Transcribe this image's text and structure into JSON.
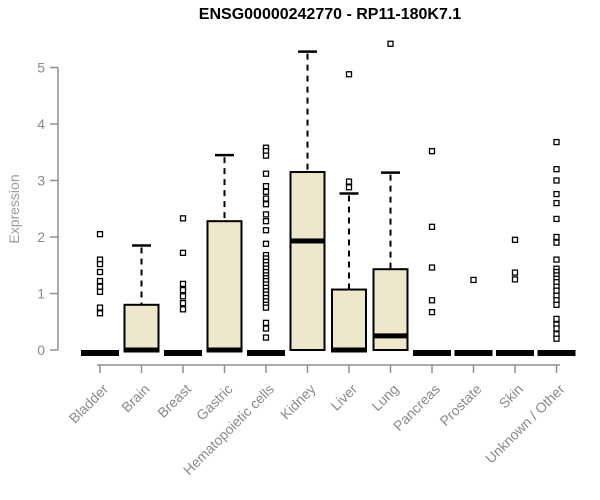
{
  "title": "ENSG00000242770 - RP11-180K7.1",
  "y_axis_label": "Expression",
  "colors": {
    "axis": "#8f8f8f",
    "tick_text": "#8a8a8a",
    "axis_label_text": "#9b9b9b",
    "box_fill": "#EDE8CC",
    "box_border": "#000000",
    "background": "#ffffff"
  },
  "chart_data": {
    "type": "boxplot",
    "title": "ENSG00000242770 - RP11-180K7.1",
    "xlabel": "",
    "ylabel": "Expression",
    "ylim": [
      0,
      5.5
    ],
    "yticks": [
      0,
      1,
      2,
      3,
      4,
      5
    ],
    "grid": false,
    "categories": [
      "Bladder",
      "Brain",
      "Breast",
      "Gastric",
      "Hematopoietic cells",
      "Kidney",
      "Liver",
      "Lung",
      "Pancreas",
      "Prostate",
      "Skin",
      "Unknown / Other"
    ],
    "box_fill": "#EDE8CC",
    "box_border": "#000000",
    "series": [
      {
        "category": "Bladder",
        "q1": 0,
        "median": 0,
        "q3": 0,
        "whisker_low": 0,
        "whisker_high": 0,
        "outliers": [
          2.05,
          1.6,
          1.52,
          1.38,
          1.22,
          1.12,
          1.03,
          0.75,
          0.65
        ]
      },
      {
        "category": "Brain",
        "q1": 0,
        "median": 0,
        "q3": 0.8,
        "whisker_low": 0,
        "whisker_high": 1.85,
        "outliers": []
      },
      {
        "category": "Breast",
        "q1": 0,
        "median": 0,
        "q3": 0,
        "whisker_low": 0,
        "whisker_high": 0,
        "outliers": [
          2.33,
          1.72,
          1.17,
          1.06,
          0.95,
          0.83,
          0.72
        ]
      },
      {
        "category": "Gastric",
        "q1": 0,
        "median": 0,
        "q3": 2.28,
        "whisker_low": 0,
        "whisker_high": 3.45,
        "outliers": []
      },
      {
        "category": "Hematopoietic cells",
        "q1": 0,
        "median": 0,
        "q3": 0,
        "whisker_low": 0,
        "whisker_high": 0,
        "outliers": [
          3.58,
          3.52,
          3.44,
          3.12,
          2.9,
          2.8,
          2.68,
          2.58,
          2.4,
          2.28,
          2.12,
          1.88,
          1.68,
          1.62,
          1.56,
          1.5,
          1.44,
          1.38,
          1.32,
          1.27,
          1.22,
          1.16,
          1.1,
          1.04,
          0.98,
          0.92,
          0.86,
          0.8,
          0.75,
          0.48,
          0.38,
          0.22
        ]
      },
      {
        "category": "Kidney",
        "q1": 0,
        "median": 1.93,
        "q3": 3.15,
        "whisker_low": 0,
        "whisker_high": 5.28,
        "outliers": []
      },
      {
        "category": "Liver",
        "q1": 0,
        "median": 0,
        "q3": 1.07,
        "whisker_low": 0,
        "whisker_high": 2.77,
        "outliers": [
          4.88,
          2.98,
          2.88
        ]
      },
      {
        "category": "Lung",
        "q1": 0,
        "median": 0.25,
        "q3": 1.43,
        "whisker_low": 0,
        "whisker_high": 3.14,
        "outliers": [
          5.42
        ]
      },
      {
        "category": "Pancreas",
        "q1": 0,
        "median": 0,
        "q3": 0,
        "whisker_low": 0,
        "whisker_high": 0,
        "outliers": [
          3.52,
          2.18,
          1.46,
          0.88,
          0.67
        ]
      },
      {
        "category": "Prostate",
        "q1": 0,
        "median": 0,
        "q3": 0,
        "whisker_low": 0,
        "whisker_high": 0,
        "outliers": [
          1.24
        ]
      },
      {
        "category": "Skin",
        "q1": 0,
        "median": 0,
        "q3": 0,
        "whisker_low": 0,
        "whisker_high": 0,
        "outliers": [
          1.95,
          1.37,
          1.25
        ]
      },
      {
        "category": "Unknown / Other",
        "q1": 0,
        "median": 0,
        "q3": 0,
        "whisker_low": 0,
        "whisker_high": 0,
        "outliers": [
          3.68,
          3.2,
          3.0,
          2.76,
          2.6,
          2.32,
          2.0,
          1.9,
          1.6,
          1.44,
          1.38,
          1.32,
          1.26,
          1.2,
          1.12,
          1.05,
          0.96,
          0.88,
          0.8,
          0.55,
          0.45,
          0.38,
          0.28,
          0.2
        ]
      }
    ]
  }
}
